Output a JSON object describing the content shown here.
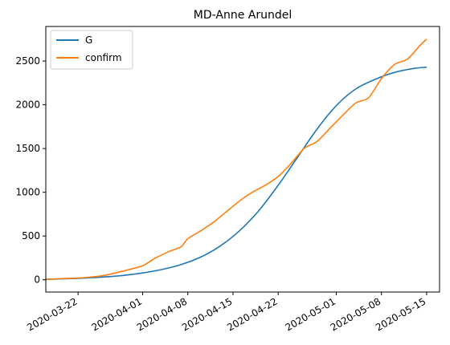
{
  "chart_data": {
    "type": "line",
    "title": "MD-Anne Arundel",
    "xlabel": "",
    "ylabel": "",
    "xlim": [
      "2020-03-17",
      "2020-05-17"
    ],
    "ylim": [
      -140,
      2895
    ],
    "x_ticks": [
      "2020-03-22",
      "2020-04-01",
      "2020-04-08",
      "2020-04-15",
      "2020-04-22",
      "2020-05-01",
      "2020-05-08",
      "2020-05-15"
    ],
    "y_ticks": [
      0,
      500,
      1000,
      1500,
      2000,
      2500
    ],
    "grid": false,
    "legend": {
      "position": "top-left",
      "entries": [
        "G",
        "confirm"
      ]
    },
    "series": [
      {
        "name": "G",
        "color": "#1f77b4",
        "x": [
          "2020-03-17",
          "2020-03-20",
          "2020-03-23",
          "2020-03-26",
          "2020-03-29",
          "2020-04-01",
          "2020-04-04",
          "2020-04-07",
          "2020-04-10",
          "2020-04-13",
          "2020-04-16",
          "2020-04-19",
          "2020-04-22",
          "2020-04-25",
          "2020-04-28",
          "2020-05-01",
          "2020-05-04",
          "2020-05-07",
          "2020-05-10",
          "2020-05-13",
          "2020-05-15"
        ],
        "values": [
          5,
          12,
          20,
          32,
          50,
          78,
          118,
          175,
          260,
          385,
          560,
          790,
          1080,
          1400,
          1720,
          1990,
          2180,
          2290,
          2370,
          2415,
          2430
        ]
      },
      {
        "name": "confirm",
        "color": "#ff7f0e",
        "x": [
          "2020-03-17",
          "2020-03-20",
          "2020-03-23",
          "2020-03-26",
          "2020-03-29",
          "2020-04-01",
          "2020-04-03",
          "2020-04-05",
          "2020-04-07",
          "2020-04-08",
          "2020-04-10",
          "2020-04-12",
          "2020-04-14",
          "2020-04-16",
          "2020-04-18",
          "2020-04-20",
          "2020-04-22",
          "2020-04-24",
          "2020-04-26",
          "2020-04-28",
          "2020-04-30",
          "2020-05-02",
          "2020-05-04",
          "2020-05-06",
          "2020-05-08",
          "2020-05-10",
          "2020-05-12",
          "2020-05-14",
          "2020-05-15"
        ],
        "values": [
          5,
          15,
          25,
          50,
          100,
          160,
          250,
          320,
          380,
          470,
          560,
          660,
          780,
          900,
          1000,
          1080,
          1180,
          1330,
          1500,
          1580,
          1730,
          1880,
          2020,
          2080,
          2300,
          2460,
          2520,
          2680,
          2750
        ]
      }
    ]
  }
}
